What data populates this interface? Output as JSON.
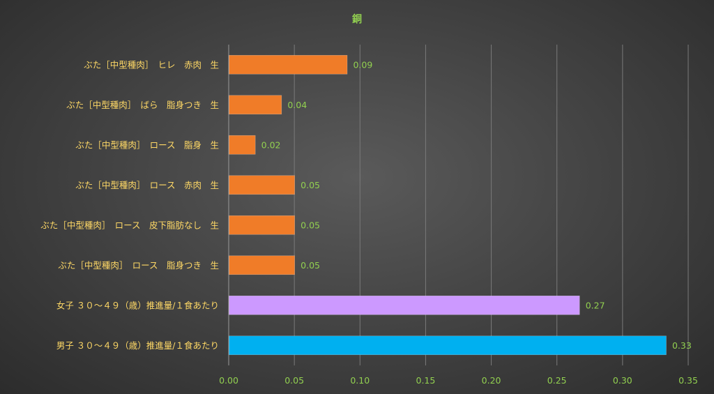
{
  "chart_data": {
    "type": "bar",
    "orientation": "horizontal",
    "title": "銅",
    "categories": [
      "ぶた［中型種肉］　ヒレ　赤肉　生",
      "ぶた［中型種肉］　ばら　脂身つき　生",
      "ぶた［中型種肉］　ロース　脂身　生",
      "ぶた［中型種肉］　ロース　赤肉　生",
      "ぶた［中型種肉］　ロース　皮下脂肪なし　生",
      "ぶた［中型種肉］　ロース　脂身つき　生",
      "女子 ３０～４９（歳）推進量/１食あたり",
      "男子 ３０～４９（歳）推進量/１食あたり"
    ],
    "values": [
      0.09,
      0.04,
      0.02,
      0.05,
      0.05,
      0.05,
      0.267,
      0.333
    ],
    "data_labels": [
      "0.09",
      "0.04",
      "0.02",
      "0.05",
      "0.05",
      "0.05",
      "0.27",
      "0.33"
    ],
    "bar_colors": [
      "#f07c28",
      "#f07c28",
      "#f07c28",
      "#f07c28",
      "#f07c28",
      "#f07c28",
      "#cc99ff",
      "#00b0f0"
    ],
    "xlim": [
      0,
      0.35
    ],
    "x_ticks": [
      0,
      0.05,
      0.1,
      0.15,
      0.2,
      0.25,
      0.3,
      0.35
    ],
    "x_tick_labels": [
      "0.00",
      "0.05",
      "0.10",
      "0.15",
      "0.20",
      "0.25",
      "0.30",
      "0.35"
    ],
    "grid": "vertical",
    "legend": "none",
    "colors": {
      "category_text": "#ffd966",
      "value_text": "#92d050",
      "gridline": "#7a7a7a"
    }
  }
}
